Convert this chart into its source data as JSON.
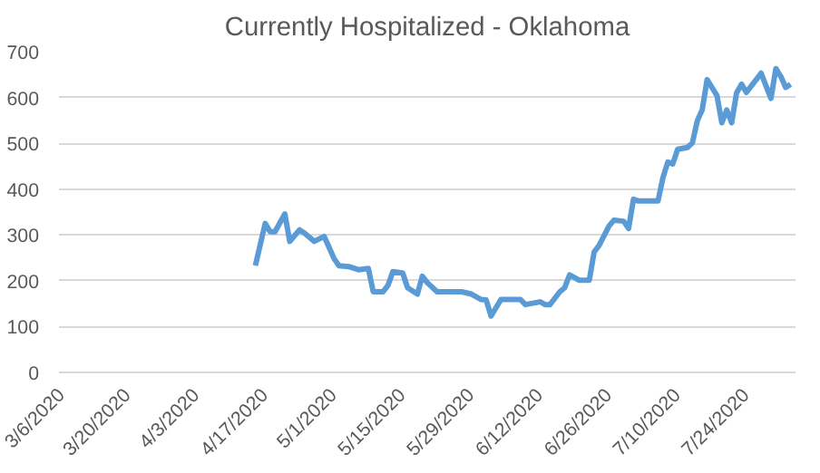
{
  "chart_data": {
    "type": "line",
    "title": "Currently Hospitalized - Oklahoma",
    "x": [
      "2020-04-15",
      "2020-04-17",
      "2020-04-18",
      "2020-04-19",
      "2020-04-21",
      "2020-04-22",
      "2020-04-24",
      "2020-04-25",
      "2020-04-27",
      "2020-04-29",
      "2020-05-01",
      "2020-05-02",
      "2020-05-04",
      "2020-05-06",
      "2020-05-08",
      "2020-05-09",
      "2020-05-11",
      "2020-05-12",
      "2020-05-13",
      "2020-05-15",
      "2020-05-16",
      "2020-05-18",
      "2020-05-19",
      "2020-05-20",
      "2020-05-22",
      "2020-05-27",
      "2020-05-29",
      "2020-05-31",
      "2020-06-01",
      "2020-06-02",
      "2020-06-04",
      "2020-06-08",
      "2020-06-09",
      "2020-06-12",
      "2020-06-13",
      "2020-06-14",
      "2020-06-16",
      "2020-06-17",
      "2020-06-18",
      "2020-06-20",
      "2020-06-22",
      "2020-06-23",
      "2020-06-24",
      "2020-06-26",
      "2020-06-27",
      "2020-06-29",
      "2020-06-30",
      "2020-07-01",
      "2020-07-02",
      "2020-07-06",
      "2020-07-07",
      "2020-07-08",
      "2020-07-09",
      "2020-07-10",
      "2020-07-12",
      "2020-07-13",
      "2020-07-14",
      "2020-07-15",
      "2020-07-16",
      "2020-07-18",
      "2020-07-19",
      "2020-07-20",
      "2020-07-21",
      "2020-07-22",
      "2020-07-23",
      "2020-07-24",
      "2020-07-25",
      "2020-07-26",
      "2020-07-27",
      "2020-07-28",
      "2020-07-29",
      "2020-07-30",
      "2020-07-31",
      "2020-08-01",
      "2020-08-02"
    ],
    "series": [
      {
        "color": "#5b9bd5",
        "values": [
          233,
          325,
          307,
          307,
          346,
          286,
          311,
          304,
          286,
          297,
          249,
          233,
          231,
          224,
          227,
          176,
          176,
          190,
          220,
          217,
          185,
          171,
          210,
          196,
          176,
          176,
          171,
          159,
          158,
          123,
          159,
          159,
          148,
          154,
          148,
          148,
          176,
          185,
          213,
          201,
          201,
          263,
          277,
          319,
          332,
          330,
          314,
          378,
          374,
          374,
          425,
          459,
          455,
          487,
          491,
          501,
          549,
          573,
          639,
          604,
          545,
          573,
          545,
          610,
          629,
          611,
          625,
          639,
          653,
          625,
          598,
          663,
          646,
          622,
          629
        ]
      }
    ],
    "xlim": [
      "2020-03-06",
      "2020-08-03"
    ],
    "xticks": [
      {
        "value": "2020-03-06",
        "label": "3/6/2020"
      },
      {
        "value": "2020-03-20",
        "label": "3/20/2020"
      },
      {
        "value": "2020-04-03",
        "label": "4/3/2020"
      },
      {
        "value": "2020-04-17",
        "label": "4/17/2020"
      },
      {
        "value": "2020-05-01",
        "label": "5/1/2020"
      },
      {
        "value": "2020-05-15",
        "label": "5/15/2020"
      },
      {
        "value": "2020-05-29",
        "label": "5/29/2020"
      },
      {
        "value": "2020-06-12",
        "label": "6/12/2020"
      },
      {
        "value": "2020-06-26",
        "label": "6/26/2020"
      },
      {
        "value": "2020-07-10",
        "label": "7/10/2020"
      },
      {
        "value": "2020-07-24",
        "label": "7/24/2020"
      }
    ],
    "ylim": [
      0,
      700
    ],
    "yticks": [
      0,
      100,
      200,
      300,
      400,
      500,
      600,
      700
    ],
    "grid": "y",
    "marker": "none",
    "line_style": "solid"
  }
}
